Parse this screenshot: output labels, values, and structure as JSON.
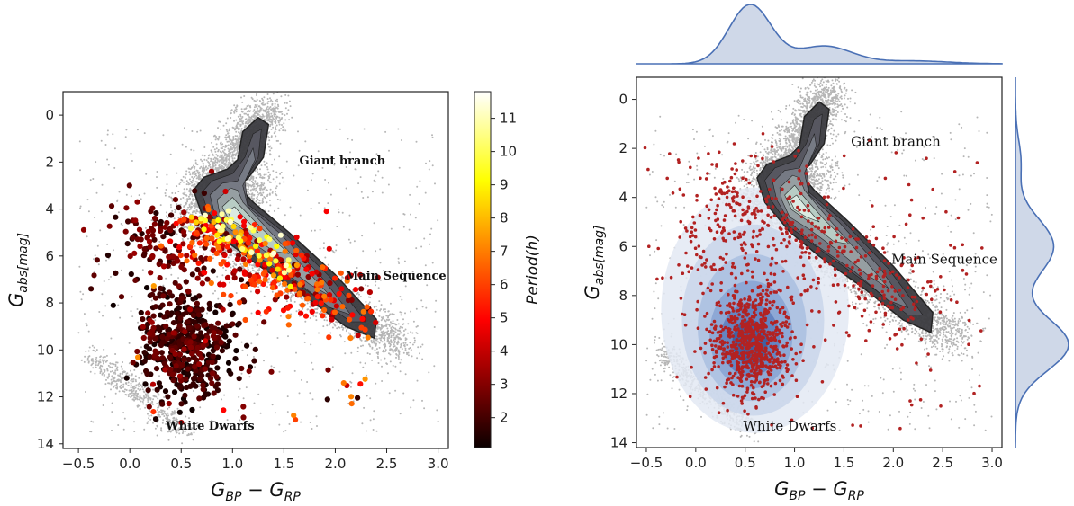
{
  "chart_data": [
    {
      "type": "scatter",
      "panel": "left",
      "title": "",
      "xlabel": "G_BP − G_RP",
      "ylabel": "G_abs[mag]",
      "xlim": [
        -0.65,
        3.1
      ],
      "ylim": [
        14.2,
        -1.0
      ],
      "y_inverted": true,
      "xticks": [
        -0.5,
        0.0,
        0.5,
        1.0,
        1.5,
        2.0,
        2.5,
        3.0
      ],
      "xtick_labels": [
        "−0.5",
        "0.0",
        "0.5",
        "1.0",
        "1.5",
        "2.0",
        "2.5",
        "3.0"
      ],
      "yticks": [
        0,
        2,
        4,
        6,
        8,
        10,
        12,
        14
      ],
      "ytick_labels": [
        "0",
        "2",
        "4",
        "6",
        "8",
        "10",
        "12",
        "14"
      ],
      "colorbar": {
        "label": "Period(h)",
        "colormap": "hot",
        "range": [
          1.1,
          11.8
        ],
        "ticks": [
          2,
          3,
          4,
          5,
          6,
          7,
          8,
          9,
          10,
          11
        ],
        "tick_labels": [
          "2",
          "3",
          "4",
          "5",
          "6",
          "7",
          "8",
          "9",
          "10",
          "11"
        ]
      },
      "annotations": [
        {
          "text": "Giant branch",
          "x": 1.65,
          "y": 2.1
        },
        {
          "text": "Main Sequence",
          "x": 2.1,
          "y": 7.0
        },
        {
          "text": "White Dwarfs",
          "x": 0.35,
          "y": 13.4
        }
      ],
      "series": [
        {
          "kind": "background",
          "color": "#9a9a9a"
        },
        {
          "kind": "density",
          "color": "#3a3a3f"
        },
        {
          "kind": "points",
          "colored_by": "Period(h)"
        }
      ]
    },
    {
      "type": "scatter",
      "panel": "right",
      "title": "",
      "xlabel": "G_BP − G_RP",
      "ylabel": "G_abs[mag]",
      "xlim": [
        -0.6,
        3.1
      ],
      "ylim": [
        14.2,
        -0.9
      ],
      "y_inverted": true,
      "xticks": [
        -0.5,
        0.0,
        0.5,
        1.0,
        1.5,
        2.0,
        2.5,
        3.0
      ],
      "xtick_labels": [
        "−0.5",
        "0.0",
        "0.5",
        "1.0",
        "1.5",
        "2.0",
        "2.5",
        "3.0"
      ],
      "yticks": [
        0,
        2,
        4,
        6,
        8,
        10,
        12,
        14
      ],
      "ytick_labels": [
        "0",
        "2",
        "4",
        "6",
        "8",
        "10",
        "12",
        "14"
      ],
      "marginals": true,
      "annotations": [
        {
          "text": "Giant branch",
          "x": 1.57,
          "y": 1.9
        },
        {
          "text": "Main Sequence",
          "x": 1.98,
          "y": 6.7
        },
        {
          "text": "White Dwarfs",
          "x": 0.48,
          "y": 13.5
        }
      ],
      "series": [
        {
          "kind": "background",
          "color": "#9a9a9a"
        },
        {
          "kind": "density",
          "color": "#3a3a3f"
        },
        {
          "kind": "kde",
          "color": "#4f73b3"
        },
        {
          "kind": "points",
          "color": "#b22222"
        }
      ]
    }
  ]
}
